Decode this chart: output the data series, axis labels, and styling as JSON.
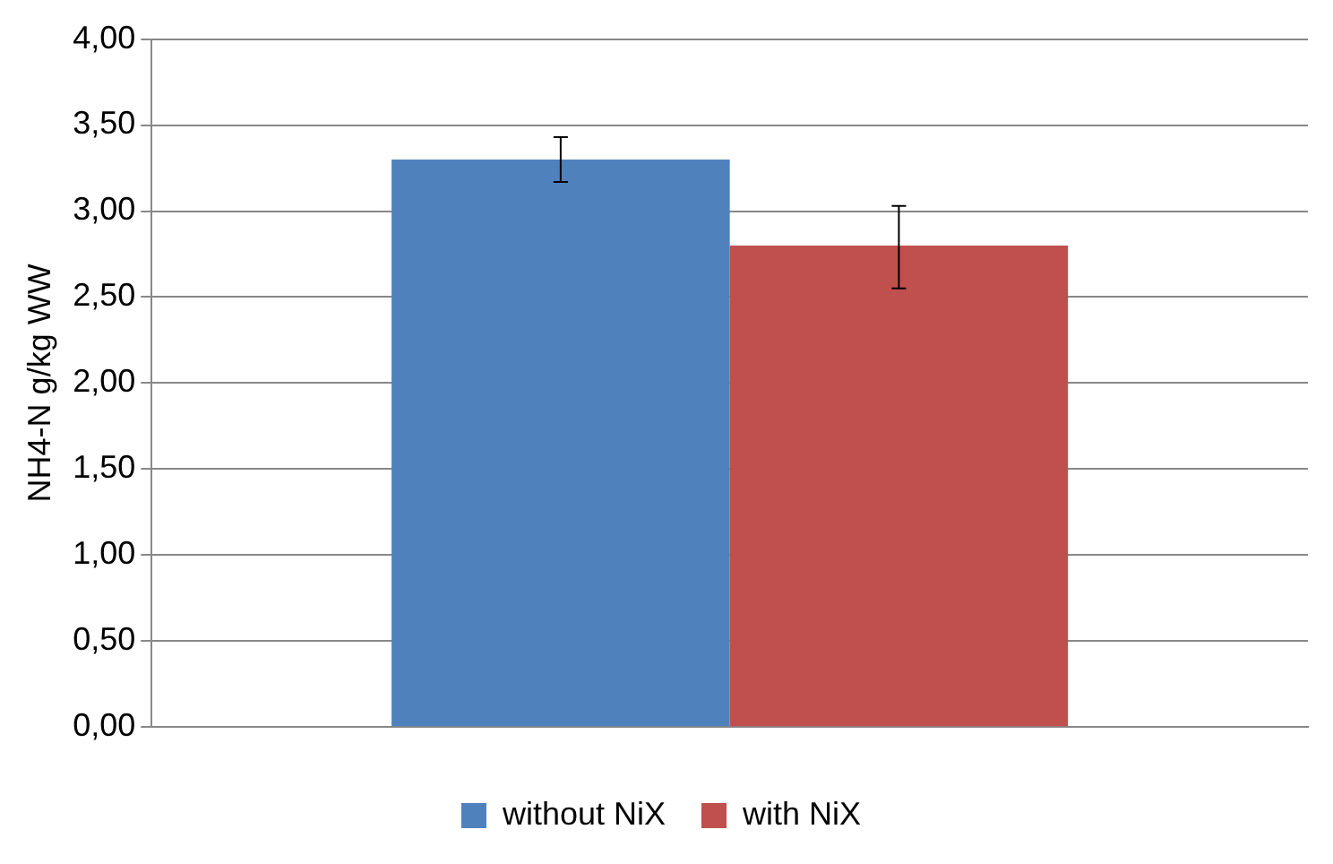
{
  "chart_data": {
    "type": "bar",
    "ylabel": "NH4-N g/kg WW",
    "categories": [
      null
    ],
    "series": [
      {
        "name": "without NiX",
        "color": "#4f81bd",
        "values": [
          3.3
        ],
        "errors": [
          [
            3.17,
            3.43
          ]
        ]
      },
      {
        "name": "with NiX",
        "color": "#c0504d",
        "values": [
          2.8
        ],
        "errors": [
          [
            2.55,
            3.03
          ]
        ]
      }
    ],
    "ylim": [
      0,
      4
    ],
    "yticks": [
      {
        "value": 0,
        "label": "0,00"
      },
      {
        "value": 0.5,
        "label": "0,50"
      },
      {
        "value": 1,
        "label": "1,00"
      },
      {
        "value": 1.5,
        "label": "1,50"
      },
      {
        "value": 2,
        "label": "2,00"
      },
      {
        "value": 2.5,
        "label": "2,50"
      },
      {
        "value": 3,
        "label": "3,00"
      },
      {
        "value": 3.5,
        "label": "3,50"
      },
      {
        "value": 4,
        "label": "4,00"
      }
    ],
    "grid": "y",
    "legend": "bottom"
  }
}
